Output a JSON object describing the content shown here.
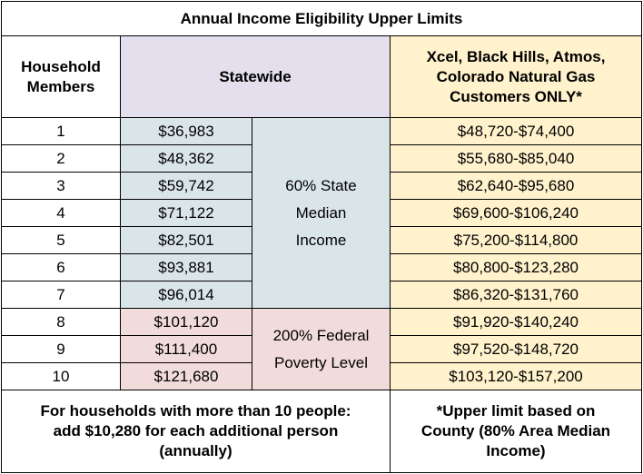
{
  "title": "Annual Income Eligibility Upper Limits",
  "headers": {
    "household_line1": "Household",
    "household_line2": "Members",
    "statewide": "Statewide",
    "utility_line1": "Xcel, Black Hills, Atmos,",
    "utility_line2": "Colorado Natural Gas",
    "utility_line3": "Customers ONLY*"
  },
  "rows": [
    {
      "members": "1",
      "statewide": "$36,983",
      "utility": "$48,720-$74,400"
    },
    {
      "members": "2",
      "statewide": "$48,362",
      "utility": "$55,680-$85,040"
    },
    {
      "members": "3",
      "statewide": "$59,742",
      "utility": "$62,640-$95,680"
    },
    {
      "members": "4",
      "statewide": "$71,122",
      "utility": "$69,600-$106,240"
    },
    {
      "members": "5",
      "statewide": "$82,501",
      "utility": "$75,200-$114,800"
    },
    {
      "members": "6",
      "statewide": "$93,881",
      "utility": "$80,800-$123,280"
    },
    {
      "members": "7",
      "statewide": "$96,014",
      "utility": "$86,320-$131,760"
    },
    {
      "members": "8",
      "statewide": "$101,120",
      "utility": "$91,920-$140,240"
    },
    {
      "members": "9",
      "statewide": "$111,400",
      "utility": "$97,520-$148,720"
    },
    {
      "members": "10",
      "statewide": "$121,680",
      "utility": "$103,120-$157,200"
    }
  ],
  "basis": {
    "state_median_line1": "60% State",
    "state_median_line2": "Median",
    "state_median_line3": "Income",
    "federal_line1": "200% Federal",
    "federal_line2": "Poverty Level"
  },
  "footer": {
    "left_line1": "For households with more than 10 people:",
    "left_line2": "add $10,280 for each additional person",
    "left_line3": "(annually)",
    "right_line1": "*Upper limit based on",
    "right_line2": "County (80% Area Median",
    "right_line3": "Income)"
  },
  "colors": {
    "statewide_header": "#e4dfec",
    "state_median_cells": "#dae5ea",
    "federal_poverty_cells": "#f2dcdb",
    "utility_cells": "#fff2cc"
  }
}
